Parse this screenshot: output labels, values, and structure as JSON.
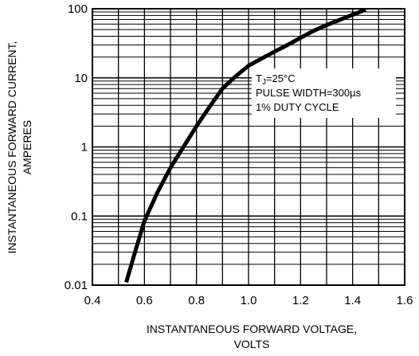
{
  "chart_data": {
    "type": "line",
    "title": "",
    "xlabel_line1": "INSTANTANEOUS FORWARD VOLTAGE,",
    "xlabel_line2": "VOLTS",
    "ylabel_line1": "INSTANTANEOUS FORWARD CURRENT,",
    "ylabel_line2": "AMPERES",
    "xlim": [
      0.4,
      1.6
    ],
    "ylim": [
      0.01,
      100
    ],
    "yscale": "log",
    "grid": true,
    "x_ticks": [
      0.4,
      0.6,
      0.8,
      1.0,
      1.2,
      1.4,
      1.6
    ],
    "x_tick_labels": [
      "0.4",
      "0.6",
      "0.8",
      "1.0",
      "1.2",
      "1.4",
      "1.6"
    ],
    "y_ticks": [
      0.01,
      0.1,
      1,
      10,
      100
    ],
    "y_tick_labels": [
      "0.01",
      "0.1",
      "1",
      "10",
      "100"
    ],
    "annotation": {
      "tj_prefix": "T",
      "tj_sub": "J",
      "tj_rest": "=25°C",
      "line2": "PULSE WIDTH=300µs",
      "line3": "1% DUTY CYCLE"
    },
    "series": [
      {
        "x": [
          0.53,
          0.56,
          0.6,
          0.65,
          0.7,
          0.75,
          0.8,
          0.85,
          0.9,
          0.95,
          1.0,
          1.05,
          1.1,
          1.15,
          1.2,
          1.25,
          1.3,
          1.35,
          1.4,
          1.45
        ],
        "y": [
          0.011,
          0.027,
          0.085,
          0.22,
          0.5,
          1.0,
          2.0,
          3.8,
          7.0,
          10.5,
          15.0,
          19.0,
          24.0,
          30.0,
          38.0,
          48.0,
          58.0,
          69.0,
          82.0,
          97.0
        ]
      }
    ]
  },
  "colors": {
    "line": "#000000",
    "grid": "#000000",
    "background": "#ffffff"
  }
}
